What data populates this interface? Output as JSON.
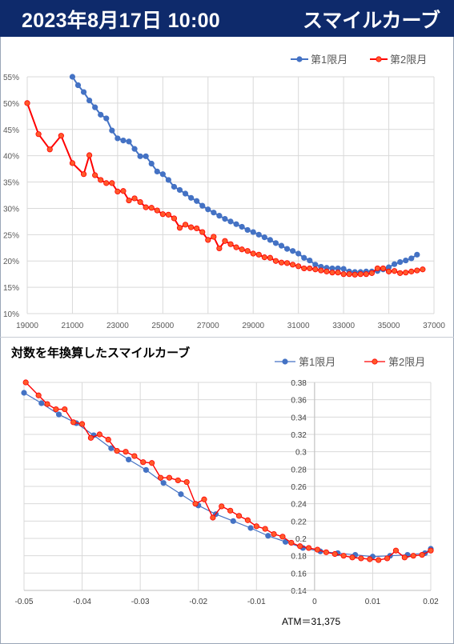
{
  "header": {
    "date": "2023年8月17日 10:00",
    "title": "スマイルカーブ"
  },
  "colors": {
    "header_bg": "#0e2a6b",
    "series1": "#4472c4",
    "series2": "#ff0000",
    "series2_fill": "#ff5a2b"
  },
  "chart_data": [
    {
      "type": "line",
      "title": "",
      "xlabel": "",
      "ylabel": "",
      "xlim": [
        19000,
        37000
      ],
      "ylim": [
        0.1,
        0.55
      ],
      "x_ticks": [
        "19000",
        "21000",
        "23000",
        "25000",
        "27000",
        "29000",
        "31000",
        "33000",
        "35000",
        "37000"
      ],
      "y_ticks": [
        "10%",
        "15%",
        "20%",
        "25%",
        "30%",
        "35%",
        "40%",
        "45%",
        "50%",
        "55%"
      ],
      "grid": true,
      "legend": "top-right",
      "series": [
        {
          "name": "第1限月",
          "x": [
            21000,
            21250,
            21500,
            21750,
            22000,
            22250,
            22500,
            22750,
            23000,
            23250,
            23500,
            23750,
            24000,
            24250,
            24500,
            24750,
            25000,
            25250,
            25500,
            25750,
            26000,
            26250,
            26500,
            26750,
            27000,
            27250,
            27500,
            27750,
            28000,
            28250,
            28500,
            28750,
            29000,
            29250,
            29500,
            29750,
            30000,
            30250,
            30500,
            30750,
            31000,
            31250,
            31500,
            31750,
            32000,
            32250,
            32500,
            32750,
            33000,
            33250,
            33500,
            33750,
            34000,
            34250,
            34500,
            34750,
            35000,
            35250,
            35500,
            35750,
            36000,
            36250
          ],
          "y": [
            0.55,
            0.534,
            0.521,
            0.505,
            0.492,
            0.478,
            0.471,
            0.448,
            0.433,
            0.429,
            0.427,
            0.413,
            0.399,
            0.399,
            0.385,
            0.37,
            0.365,
            0.354,
            0.341,
            0.335,
            0.328,
            0.32,
            0.314,
            0.305,
            0.298,
            0.292,
            0.286,
            0.28,
            0.275,
            0.27,
            0.265,
            0.259,
            0.255,
            0.25,
            0.245,
            0.24,
            0.234,
            0.229,
            0.223,
            0.219,
            0.214,
            0.206,
            0.201,
            0.193,
            0.189,
            0.187,
            0.186,
            0.186,
            0.185,
            0.18,
            0.179,
            0.179,
            0.18,
            0.18,
            0.181,
            0.184,
            0.188,
            0.194,
            0.198,
            0.201,
            0.205,
            0.212
          ]
        },
        {
          "name": "第2限月",
          "x": [
            19000,
            19500,
            20000,
            20500,
            21000,
            21500,
            21750,
            22000,
            22250,
            22500,
            22750,
            23000,
            23250,
            23500,
            23750,
            24000,
            24250,
            24500,
            24750,
            25000,
            25250,
            25500,
            25750,
            26000,
            26250,
            26500,
            26750,
            27000,
            27250,
            27500,
            27750,
            28000,
            28250,
            28500,
            28750,
            29000,
            29250,
            29500,
            29750,
            30000,
            30250,
            30500,
            30750,
            31000,
            31250,
            31500,
            31750,
            32000,
            32250,
            32500,
            32750,
            33000,
            33250,
            33500,
            33750,
            34000,
            34250,
            34500,
            34750,
            35000,
            35250,
            35500,
            35750,
            36000,
            36250,
            36500
          ],
          "y": [
            0.5,
            0.441,
            0.412,
            0.438,
            0.386,
            0.365,
            0.401,
            0.363,
            0.354,
            0.348,
            0.348,
            0.332,
            0.333,
            0.315,
            0.319,
            0.312,
            0.302,
            0.301,
            0.296,
            0.289,
            0.288,
            0.281,
            0.263,
            0.269,
            0.264,
            0.262,
            0.255,
            0.24,
            0.246,
            0.224,
            0.238,
            0.232,
            0.226,
            0.222,
            0.219,
            0.214,
            0.212,
            0.207,
            0.206,
            0.2,
            0.197,
            0.196,
            0.193,
            0.19,
            0.186,
            0.186,
            0.184,
            0.182,
            0.18,
            0.178,
            0.178,
            0.175,
            0.175,
            0.174,
            0.175,
            0.175,
            0.177,
            0.186,
            0.186,
            0.18,
            0.181,
            0.177,
            0.178,
            0.18,
            0.182,
            0.184
          ]
        }
      ]
    },
    {
      "type": "line",
      "title": "対数を年換算したスマイルカーブ",
      "xlabel": "",
      "ylabel": "",
      "xlim": [
        -0.05,
        0.02
      ],
      "ylim": [
        0.14,
        0.38
      ],
      "x_ticks": [
        "-0.05",
        "-0.04",
        "-0.03",
        "-0.02",
        "-0.01",
        "0",
        "0.01",
        "0.02"
      ],
      "y_ticks": [
        "0.14",
        "0.16",
        "0.18",
        "0.2",
        "0.22",
        "0.24",
        "0.26",
        "0.28",
        "0.3",
        "0.32",
        "0.34",
        "0.36",
        "0.38"
      ],
      "grid": true,
      "legend": "top-right",
      "annotation": "ATM＝31,375",
      "series": [
        {
          "name": "第1限月",
          "x": [
            -0.05,
            -0.047,
            -0.044,
            -0.041,
            -0.038,
            -0.035,
            -0.032,
            -0.029,
            -0.026,
            -0.023,
            -0.02,
            -0.017,
            -0.014,
            -0.011,
            -0.008,
            -0.005,
            -0.002,
            0.001,
            0.004,
            0.007,
            0.01,
            0.013,
            0.016,
            0.019,
            0.02
          ],
          "y": [
            0.368,
            0.356,
            0.343,
            0.333,
            0.319,
            0.304,
            0.291,
            0.279,
            0.264,
            0.251,
            0.238,
            0.228,
            0.22,
            0.212,
            0.203,
            0.196,
            0.189,
            0.185,
            0.183,
            0.181,
            0.179,
            0.18,
            0.181,
            0.183,
            0.188
          ]
        },
        {
          "name": "第2限月",
          "x": [
            -0.0497,
            -0.0475,
            -0.046,
            -0.0445,
            -0.043,
            -0.0415,
            -0.04,
            -0.0385,
            -0.037,
            -0.0355,
            -0.034,
            -0.0325,
            -0.031,
            -0.0295,
            -0.028,
            -0.0265,
            -0.025,
            -0.0235,
            -0.022,
            -0.0205,
            -0.019,
            -0.0175,
            -0.016,
            -0.0145,
            -0.013,
            -0.0115,
            -0.01,
            -0.0085,
            -0.007,
            -0.0055,
            -0.004,
            -0.0025,
            -0.001,
            0.0005,
            0.002,
            0.0035,
            0.005,
            0.0065,
            0.008,
            0.0095,
            0.011,
            0.0125,
            0.014,
            0.0155,
            0.017,
            0.0185,
            0.02
          ],
          "y": [
            0.38,
            0.365,
            0.355,
            0.349,
            0.349,
            0.334,
            0.332,
            0.316,
            0.32,
            0.314,
            0.301,
            0.3,
            0.295,
            0.288,
            0.287,
            0.27,
            0.27,
            0.267,
            0.265,
            0.24,
            0.245,
            0.224,
            0.237,
            0.232,
            0.226,
            0.221,
            0.214,
            0.211,
            0.205,
            0.202,
            0.195,
            0.191,
            0.189,
            0.187,
            0.184,
            0.182,
            0.18,
            0.178,
            0.177,
            0.176,
            0.175,
            0.177,
            0.186,
            0.178,
            0.18,
            0.181,
            0.186
          ]
        }
      ]
    }
  ]
}
